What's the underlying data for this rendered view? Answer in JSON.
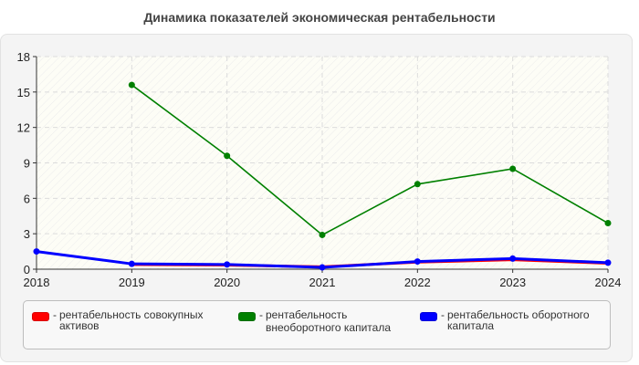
{
  "chart_data": {
    "type": "line",
    "title": "Динамика показателей экономическая рентабельности",
    "xlabel": "",
    "ylabel": "",
    "x": [
      "2018",
      "2019",
      "2020",
      "2021",
      "2022",
      "2023",
      "2024"
    ],
    "ylim": [
      0,
      18
    ],
    "yticks": [
      0,
      3,
      6,
      9,
      12,
      15,
      18
    ],
    "grid": true,
    "legend_position": "bottom",
    "series": [
      {
        "name": "рентабельность совокупных активов",
        "color": "#ff0000",
        "values": [
          null,
          0.4,
          0.35,
          0.2,
          0.6,
          0.8,
          0.5
        ]
      },
      {
        "name": "рентабельность внеоборотного капитала",
        "color": "#008000",
        "values": [
          null,
          15.6,
          9.6,
          2.9,
          7.2,
          8.5,
          3.9
        ]
      },
      {
        "name": "рентабельность оборотного капитала",
        "color": "#0000ff",
        "values": [
          1.5,
          0.45,
          0.4,
          0.15,
          0.65,
          0.9,
          0.55
        ]
      }
    ]
  },
  "title": "Динамика показателей экономическая рентабельности",
  "legend": {
    "items": [
      {
        "label": "рентабельность совокупных активов",
        "color": "#ff0000"
      },
      {
        "label": "рентабельность внеоборотного капитала",
        "color": "#008000"
      },
      {
        "label": "рентабельность оборотного капитала",
        "color": "#0000ff"
      }
    ],
    "separator": "-"
  }
}
